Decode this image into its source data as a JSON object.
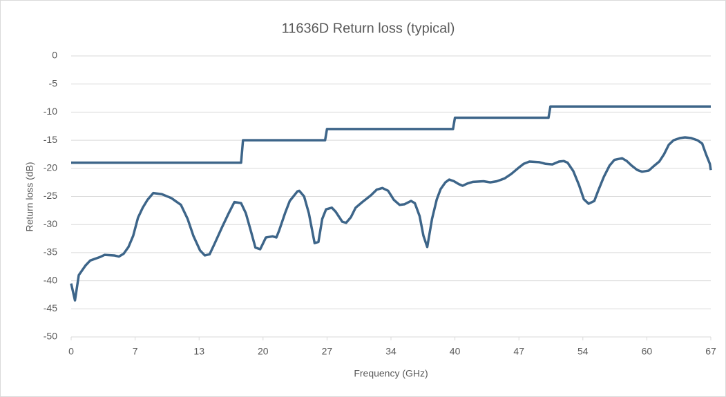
{
  "chart_data": {
    "type": "line",
    "title": "11636D Return loss (typical)",
    "x_label": "Frequency (GHz)",
    "y_label": "Return loss (dB)",
    "xlim": [
      0,
      67
    ],
    "xticks": [
      0,
      {
        "value": 6.7,
        "label": "7"
      },
      {
        "value": 13.4,
        "label": "13"
      },
      {
        "value": 20.1,
        "label": "20"
      },
      {
        "value": 26.8,
        "label": "27"
      },
      {
        "value": 33.5,
        "label": "34"
      },
      {
        "value": 40.2,
        "label": "40"
      },
      {
        "value": 46.9,
        "label": "47"
      },
      {
        "value": 53.6,
        "label": "54"
      },
      {
        "value": 60.3,
        "label": "60"
      },
      67
    ],
    "ylim": [
      -50,
      0
    ],
    "yticks": [
      0,
      -5,
      -10,
      -15,
      -20,
      -25,
      -30,
      -35,
      -40,
      -45,
      -50
    ],
    "grid": true,
    "series": [
      {
        "color": "#3d6589",
        "x": [
          0,
          17.8,
          18,
          26.6,
          26.8,
          40,
          40.2,
          50,
          50.2,
          67
        ],
        "values": [
          -19,
          -19,
          -15,
          -15,
          -13,
          -13,
          -11,
          -11,
          -9,
          -9
        ]
      },
      {
        "color": "#3d6589",
        "x": [
          0,
          0.4,
          0.8,
          1.5,
          2,
          3,
          3.5,
          4.5,
          5,
          5.5,
          6,
          6.5,
          7,
          7.5,
          8,
          8.6,
          9.5,
          10.5,
          11.5,
          12.2,
          12.8,
          13.5,
          14,
          14.5,
          15,
          15.8,
          16.5,
          17.1,
          17.8,
          18.3,
          18.8,
          19.3,
          19.8,
          20.4,
          21.1,
          21.5,
          21.8,
          22.4,
          22.9,
          23.7,
          23.9,
          24.4,
          24.9,
          25.5,
          25.9,
          26.3,
          26.7,
          27.3,
          27.7,
          28.4,
          28.8,
          29.3,
          29.8,
          30.5,
          31.4,
          32.0,
          32.6,
          33.2,
          33.8,
          34.4,
          34.9,
          35.6,
          36.0,
          36.5,
          36.9,
          37.3,
          37.8,
          38.3,
          38.7,
          39.2,
          39.6,
          40.1,
          40.6,
          41.0,
          41.5,
          42.1,
          43.2,
          43.9,
          44.6,
          45.4,
          46.1,
          46.8,
          47.4,
          48.0,
          49.0,
          49.7,
          50.4,
          51.1,
          51.6,
          52.0,
          52.6,
          53.2,
          53.7,
          54.2,
          54.8,
          55.2,
          55.8,
          56.4,
          56.9,
          57.7,
          58.2,
          58.7,
          59.3,
          59.8,
          60.5,
          61.1,
          61.6,
          62.1,
          62.6,
          63.1,
          63.8,
          64.3,
          64.9,
          65.6,
          66.1,
          66.5,
          66.9,
          67
        ],
        "values": [
          -40.5,
          -43.5,
          -39,
          -37.3,
          -36.4,
          -35.8,
          -35.4,
          -35.5,
          -35.7,
          -35.2,
          -34,
          -32,
          -28.8,
          -27,
          -25.6,
          -24.4,
          -24.6,
          -25.3,
          -26.5,
          -29,
          -32,
          -34.6,
          -35.5,
          -35.3,
          -33.5,
          -30.5,
          -28,
          -26,
          -26.2,
          -28,
          -31,
          -34.1,
          -34.4,
          -32.3,
          -32.1,
          -32.3,
          -31,
          -28,
          -25.8,
          -24.1,
          -24,
          -25,
          -28,
          -33.3,
          -33.1,
          -29,
          -27.3,
          -27,
          -27.7,
          -29.5,
          -29.7,
          -28.7,
          -27,
          -26,
          -24.8,
          -23.8,
          -23.5,
          -24,
          -25.6,
          -26.5,
          -26.4,
          -25.8,
          -26.2,
          -28.5,
          -32,
          -34,
          -29,
          -25.5,
          -23.7,
          -22.5,
          -22,
          -22.3,
          -22.8,
          -23.1,
          -22.7,
          -22.4,
          -22.3,
          -22.5,
          -22.3,
          -21.8,
          -21,
          -20,
          -19.2,
          -18.8,
          -18.9,
          -19.2,
          -19.3,
          -18.8,
          -18.7,
          -19,
          -20.5,
          -23,
          -25.5,
          -26.3,
          -25.8,
          -24,
          -21.5,
          -19.5,
          -18.5,
          -18.2,
          -18.7,
          -19.5,
          -20.3,
          -20.6,
          -20.4,
          -19.5,
          -18.8,
          -17.5,
          -15.8,
          -15,
          -14.6,
          -14.5,
          -14.6,
          -15,
          -15.6,
          -17.5,
          -19.2,
          -20.3
        ]
      }
    ]
  }
}
